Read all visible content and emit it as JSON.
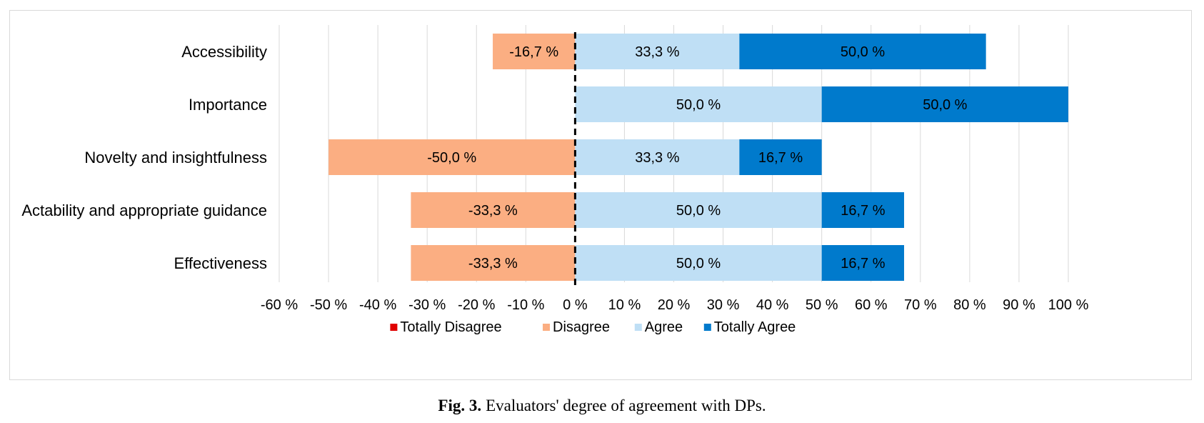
{
  "chart_data": {
    "type": "bar",
    "orientation": "horizontal",
    "stacked": true,
    "diverging": true,
    "categories": [
      "Accessibility",
      "Importance",
      "Novelty and insightfulness",
      "Actability and appropriate guidance",
      "Effectiveness"
    ],
    "series": [
      {
        "name": "Totally Disagree",
        "color": "#e00000",
        "values": [
          0,
          0,
          0,
          0,
          0
        ],
        "labels": [
          "",
          "",
          "",
          "",
          ""
        ]
      },
      {
        "name": "Disagree",
        "color": "#fbae82",
        "values": [
          -16.7,
          0,
          -50.0,
          -33.3,
          -33.3
        ],
        "labels": [
          "-16,7 %",
          "",
          "-50,0 %",
          "-33,3 %",
          "-33,3 %"
        ]
      },
      {
        "name": "Agree",
        "color": "#bfdff5",
        "values": [
          33.3,
          50.0,
          33.3,
          50.0,
          50.0
        ],
        "labels": [
          "33,3 %",
          "50,0 %",
          "33,3 %",
          "50,0 %",
          "50,0 %"
        ]
      },
      {
        "name": "Totally Agree",
        "color": "#007acc",
        "values": [
          50.0,
          50.0,
          16.7,
          16.7,
          16.7
        ],
        "labels": [
          "50,0 %",
          "50,0 %",
          "16,7 %",
          "16,7 %",
          "16,7 %"
        ]
      }
    ],
    "xlim": [
      -60,
      100
    ],
    "xticks": [
      -60,
      -50,
      -40,
      -30,
      -20,
      -10,
      0,
      10,
      20,
      30,
      40,
      50,
      60,
      70,
      80,
      90,
      100
    ],
    "xtick_labels": [
      "-60 %",
      "-50 %",
      "-40 %",
      "-30 %",
      "-20 %",
      "-10 %",
      "0 %",
      "10 %",
      "20 %",
      "30 %",
      "40 %",
      "50 %",
      "60 %",
      "70 %",
      "80 %",
      "90 %",
      "100 %"
    ],
    "grid": true,
    "zero_line": "dashed",
    "legend_position": "bottom",
    "title": "",
    "xlabel": "",
    "ylabel": ""
  },
  "caption": {
    "label": "Fig. 3.",
    "text": "Evaluators' degree of agreement with DPs."
  }
}
